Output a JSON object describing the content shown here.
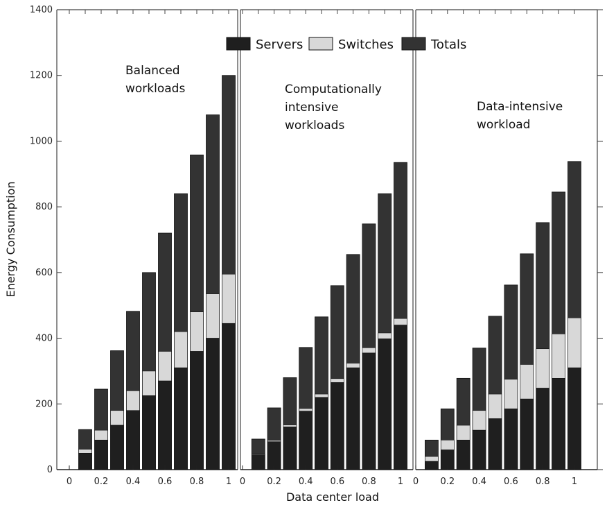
{
  "chart_data": {
    "type": "bar",
    "stacking": "overlaid",
    "xlabel": "Data center load",
    "ylabel": "Energy Consumption",
    "ylim": [
      0,
      1400
    ],
    "yticks": [
      0,
      200,
      400,
      600,
      800,
      1000,
      1200,
      1400
    ],
    "grid": false,
    "legend_position": "top-center",
    "legend": [
      {
        "label": "Servers",
        "color": "#1f1f1f"
      },
      {
        "label": "Switches",
        "color": "#d8d8d8"
      },
      {
        "label": "Totals",
        "color": "#333333"
      }
    ],
    "x_ticks": [
      "0",
      "0.2",
      "0.4",
      "0.6",
      "0.8",
      "1"
    ],
    "groups": [
      {
        "annotation": [
          "Balanced",
          "workloads"
        ],
        "loads": [
          0.1,
          0.2,
          0.3,
          0.4,
          0.5,
          0.6,
          0.7,
          0.8,
          0.9,
          1.0
        ],
        "servers": [
          50,
          90,
          135,
          180,
          225,
          270,
          310,
          360,
          400,
          445
        ],
        "switches": [
          12,
          30,
          45,
          60,
          75,
          90,
          110,
          120,
          135,
          150
        ],
        "totals": [
          122,
          245,
          362,
          482,
          600,
          720,
          840,
          958,
          1080,
          1200
        ]
      },
      {
        "annotation": [
          "Computationally",
          "intensive",
          "workloads"
        ],
        "loads": [
          0.1,
          0.2,
          0.3,
          0.4,
          0.5,
          0.6,
          0.7,
          0.8,
          0.9,
          1.0
        ],
        "servers": [
          45,
          85,
          130,
          178,
          220,
          265,
          310,
          355,
          398,
          440
        ],
        "switches": [
          2,
          4,
          6,
          8,
          10,
          12,
          14,
          16,
          18,
          20
        ],
        "totals": [
          93,
          188,
          280,
          372,
          465,
          560,
          655,
          748,
          840,
          935
        ]
      },
      {
        "annotation": [
          "Data-intensive",
          "workload"
        ],
        "loads": [
          0.1,
          0.2,
          0.3,
          0.4,
          0.5,
          0.6,
          0.7,
          0.8,
          0.9,
          1.0
        ],
        "servers": [
          25,
          60,
          90,
          120,
          155,
          185,
          215,
          248,
          278,
          310
        ],
        "switches": [
          15,
          30,
          45,
          60,
          75,
          90,
          105,
          120,
          135,
          152
        ],
        "totals": [
          90,
          185,
          278,
          370,
          467,
          562,
          657,
          752,
          845,
          938
        ]
      }
    ]
  }
}
